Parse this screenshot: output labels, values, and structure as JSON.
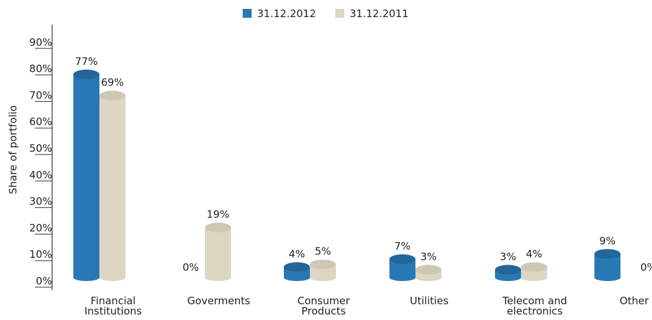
{
  "chart_data": {
    "type": "bar",
    "ylabel": "Share of portfolio",
    "ylim": [
      0,
      90
    ],
    "yticks": [
      "0%",
      "10%",
      "20%",
      "30%",
      "40%",
      "50%",
      "60%",
      "70%",
      "80%",
      "90%"
    ],
    "categories": [
      "Financial Institutions",
      "Goverments",
      "Consumer Products",
      "Utilities",
      "Telecom and electronics",
      "Other"
    ],
    "series": [
      {
        "name": "31.12.2012",
        "color": "#2878b5",
        "values": [
          77,
          0,
          4,
          7,
          3,
          9
        ],
        "labels": [
          "77%",
          "0%",
          "4%",
          "7%",
          "3%",
          "9%"
        ]
      },
      {
        "name": "31.12.2011",
        "color": "#dcd6c2",
        "values": [
          69,
          19,
          5,
          3,
          4,
          0
        ],
        "labels": [
          "69%",
          "19%",
          "5%",
          "3%",
          "4%",
          "0%"
        ]
      }
    ],
    "legend_position": "top-center",
    "grid": false
  }
}
